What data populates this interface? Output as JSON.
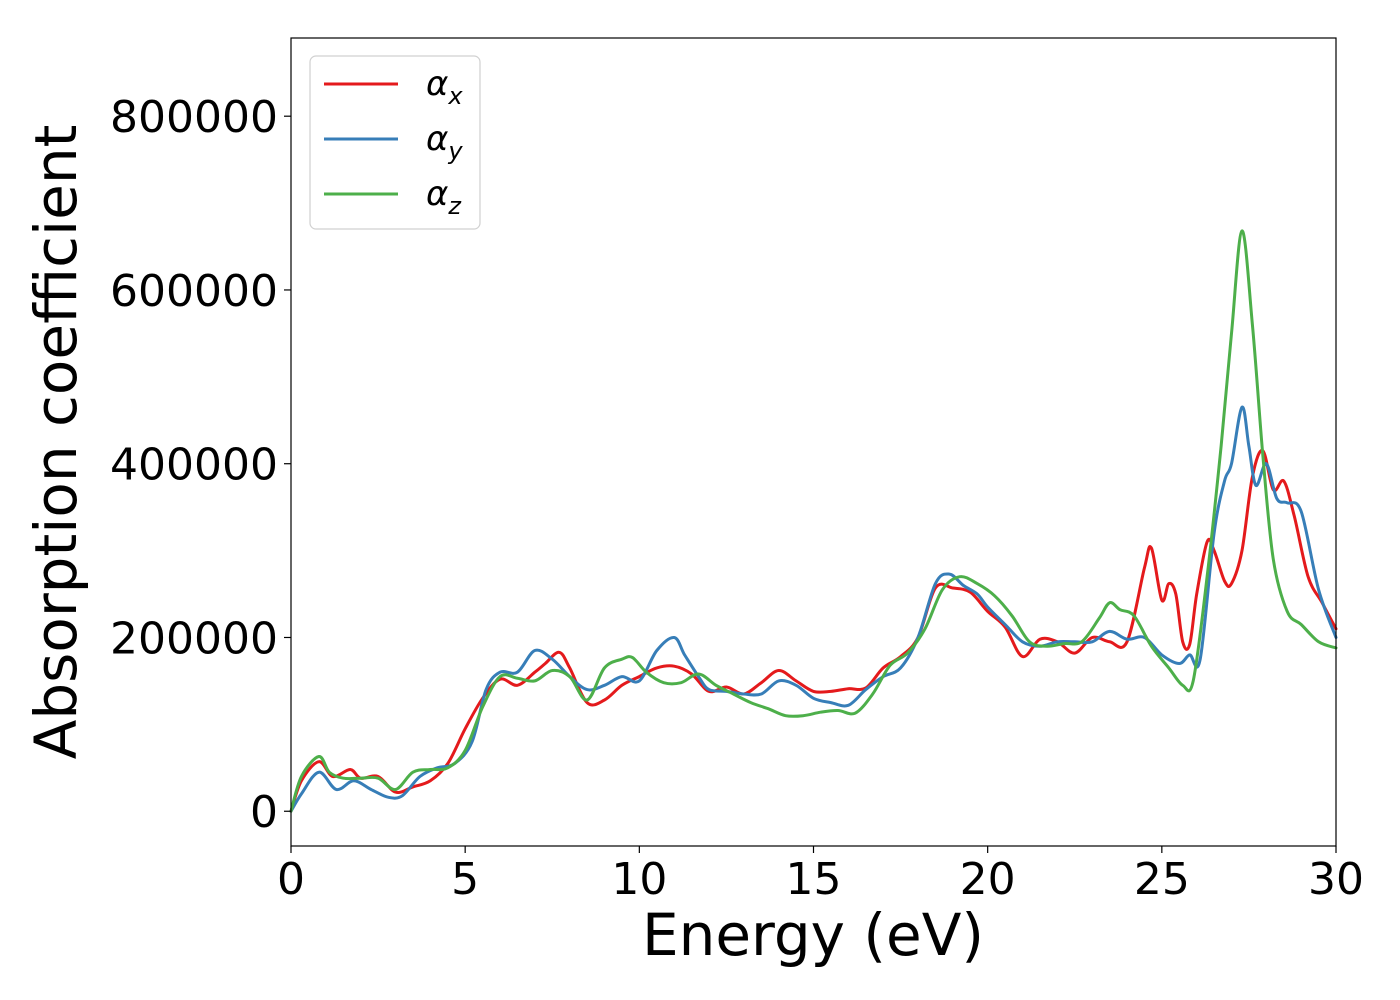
{
  "chart_data": {
    "type": "line",
    "xlabel": "Energy (eV)",
    "ylabel": "Absorption coefficient",
    "xlim": [
      0,
      30
    ],
    "ylim": [
      -40000,
      890000
    ],
    "xticks": [
      0,
      5,
      10,
      15,
      20,
      25,
      30
    ],
    "xtick_labels": [
      "0",
      "5",
      "10",
      "15",
      "20",
      "25",
      "30"
    ],
    "yticks": [
      0,
      200000,
      400000,
      600000,
      800000
    ],
    "ytick_labels": [
      "0",
      "200000",
      "400000",
      "600000",
      "800000"
    ],
    "grid": false,
    "legend": "top-left",
    "series": [
      {
        "name": "αx",
        "base": "α",
        "sub": "x",
        "color": "#e41a1c",
        "x": [
          0,
          0.3,
          0.8,
          1.2,
          1.7,
          2.0,
          2.5,
          3.0,
          3.5,
          4.0,
          4.5,
          5.0,
          5.5,
          6.0,
          6.5,
          7.0,
          7.3,
          7.7,
          8.0,
          8.5,
          9.0,
          9.5,
          10.0,
          10.5,
          11.0,
          11.5,
          12.0,
          12.5,
          13.0,
          13.5,
          14.0,
          14.5,
          15.0,
          15.5,
          16.0,
          16.5,
          17.0,
          17.5,
          18.0,
          18.5,
          19.0,
          19.5,
          20.0,
          20.5,
          21.0,
          21.5,
          22.0,
          22.5,
          23.0,
          23.5,
          24.0,
          24.5,
          24.7,
          25.0,
          25.2,
          25.4,
          25.6,
          25.8,
          26.0,
          26.3,
          26.5,
          26.8,
          27.0,
          27.3,
          27.6,
          27.9,
          28.2,
          28.5,
          28.8,
          29.2,
          29.6,
          30.0
        ],
        "values": [
          0,
          35000,
          57000,
          40000,
          48000,
          38000,
          40000,
          22000,
          28000,
          35000,
          55000,
          95000,
          130000,
          152000,
          145000,
          160000,
          170000,
          183000,
          165000,
          125000,
          128000,
          145000,
          155000,
          165000,
          167000,
          158000,
          138000,
          143000,
          135000,
          148000,
          162000,
          150000,
          138000,
          138000,
          141000,
          142000,
          165000,
          178000,
          200000,
          257000,
          257000,
          252000,
          230000,
          212000,
          178000,
          198000,
          195000,
          182000,
          200000,
          195000,
          195000,
          280000,
          303000,
          243000,
          262000,
          250000,
          195000,
          192000,
          250000,
          310000,
          300000,
          265000,
          262000,
          300000,
          385000,
          415000,
          370000,
          380000,
          340000,
          270000,
          240000,
          210000
        ]
      },
      {
        "name": "αy",
        "base": "α",
        "sub": "y",
        "color": "#377eb8",
        "x": [
          0,
          0.3,
          0.8,
          1.3,
          1.8,
          2.3,
          2.8,
          3.2,
          3.7,
          4.2,
          4.7,
          5.2,
          5.6,
          6.0,
          6.5,
          7.0,
          7.5,
          8.0,
          8.5,
          9.0,
          9.5,
          10.0,
          10.5,
          11.0,
          11.3,
          11.7,
          12.0,
          12.5,
          13.0,
          13.5,
          14.0,
          14.5,
          15.0,
          15.5,
          16.0,
          16.5,
          17.0,
          17.5,
          18.0,
          18.5,
          18.9,
          19.3,
          19.7,
          20.0,
          20.5,
          21.0,
          21.5,
          22.0,
          22.5,
          23.0,
          23.5,
          24.0,
          24.5,
          25.0,
          25.5,
          25.8,
          26.1,
          26.5,
          26.8,
          27.0,
          27.3,
          27.5,
          27.7,
          28.0,
          28.3,
          28.6,
          29.0,
          29.5,
          30.0
        ],
        "values": [
          0,
          20000,
          45000,
          25000,
          35000,
          25000,
          16000,
          18000,
          40000,
          50000,
          55000,
          80000,
          140000,
          160000,
          160000,
          185000,
          175000,
          155000,
          140000,
          145000,
          155000,
          150000,
          185000,
          200000,
          180000,
          155000,
          140000,
          138000,
          135000,
          135000,
          150000,
          145000,
          130000,
          125000,
          122000,
          140000,
          155000,
          165000,
          200000,
          262000,
          273000,
          260000,
          250000,
          235000,
          215000,
          195000,
          190000,
          195000,
          195000,
          195000,
          207000,
          198000,
          200000,
          180000,
          170000,
          180000,
          175000,
          320000,
          380000,
          400000,
          465000,
          420000,
          375000,
          400000,
          360000,
          355000,
          345000,
          255000,
          200000
        ]
      },
      {
        "name": "αz",
        "base": "α",
        "sub": "z",
        "color": "#4daf4a",
        "x": [
          0,
          0.3,
          0.8,
          1.1,
          1.5,
          2.0,
          2.5,
          3.0,
          3.5,
          4.0,
          4.5,
          5.0,
          5.5,
          6.0,
          6.5,
          7.0,
          7.5,
          8.0,
          8.5,
          9.0,
          9.5,
          9.8,
          10.2,
          10.7,
          11.2,
          11.7,
          12.2,
          12.7,
          13.2,
          13.7,
          14.2,
          14.7,
          15.2,
          15.7,
          16.2,
          16.7,
          17.2,
          17.7,
          18.2,
          18.7,
          19.2,
          19.7,
          20.2,
          20.7,
          21.2,
          21.7,
          22.2,
          22.7,
          23.2,
          23.5,
          23.8,
          24.2,
          24.7,
          25.2,
          25.6,
          25.9,
          26.3,
          26.7,
          27.0,
          27.3,
          27.6,
          27.9,
          28.2,
          28.6,
          29.0,
          29.5,
          30.0
        ],
        "values": [
          0,
          40000,
          63000,
          45000,
          38000,
          38000,
          38000,
          25000,
          45000,
          48000,
          50000,
          70000,
          120000,
          155000,
          153000,
          150000,
          162000,
          155000,
          128000,
          165000,
          175000,
          177000,
          160000,
          148000,
          148000,
          158000,
          145000,
          135000,
          125000,
          118000,
          110000,
          110000,
          114000,
          116000,
          113000,
          135000,
          168000,
          182000,
          210000,
          255000,
          270000,
          262000,
          248000,
          225000,
          195000,
          190000,
          193000,
          195000,
          222000,
          240000,
          232000,
          225000,
          190000,
          165000,
          145000,
          150000,
          270000,
          420000,
          550000,
          668000,
          560000,
          410000,
          290000,
          230000,
          215000,
          195000,
          188000
        ]
      }
    ]
  }
}
